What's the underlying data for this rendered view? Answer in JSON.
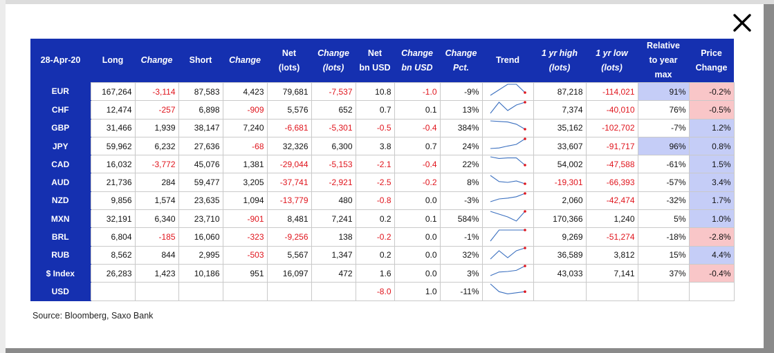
{
  "colors": {
    "header_bg": "#1530b0",
    "negative": "#e0141c",
    "highlight_blue": "#c5cdf7",
    "highlight_pink": "#f9c6c8"
  },
  "close_icon": "close-icon",
  "date_label": "28-Apr-20",
  "headers": [
    [
      "Long"
    ],
    [
      "Change"
    ],
    [
      "Short"
    ],
    [
      "Change"
    ],
    [
      "Net",
      "(lots)"
    ],
    [
      "Change",
      "(lots)"
    ],
    [
      "Net",
      "bn USD"
    ],
    [
      "Change",
      "bn USD"
    ],
    [
      "Change",
      "Pct."
    ],
    [
      "Trend"
    ],
    [
      "1 yr high",
      "(lots)"
    ],
    [
      "1 yr low",
      "(lots)"
    ],
    [
      "Relative",
      "to year",
      "max"
    ],
    [
      "Price",
      "Change"
    ]
  ],
  "rows": [
    {
      "name": "EUR",
      "cells": [
        "167,264",
        "-3,114",
        "87,583",
        "4,423",
        "79,681",
        "-7,537",
        "10.8",
        "-1.0",
        "-9%",
        "",
        "87,218",
        "-114,021",
        "91%",
        "-0.2%"
      ],
      "trend": [
        5,
        3,
        1,
        1,
        4
      ],
      "rel": "blue",
      "price": "pink"
    },
    {
      "name": "CHF",
      "cells": [
        "12,474",
        "-257",
        "6,898",
        "-909",
        "5,576",
        "652",
        "0.7",
        "0.1",
        "13%",
        "",
        "7,374",
        "-40,010",
        "76%",
        "-0.5%"
      ],
      "trend": [
        5,
        1,
        4,
        2,
        1
      ],
      "rel": "",
      "price": "pink"
    },
    {
      "name": "GBP",
      "cells": [
        "31,466",
        "1,939",
        "38,147",
        "7,240",
        "-6,681",
        "-5,301",
        "-0.5",
        "-0.4",
        "384%",
        "",
        "35,162",
        "-102,702",
        "-7%",
        "1.2%"
      ],
      "trend": [
        1,
        1.2,
        1.4,
        2.2,
        4
      ],
      "rel": "",
      "price": "blue"
    },
    {
      "name": "JPY",
      "cells": [
        "59,962",
        "6,232",
        "27,636",
        "-68",
        "32,326",
        "6,300",
        "3.8",
        "0.7",
        "24%",
        "",
        "33,607",
        "-91,717",
        "96%",
        "0.8%"
      ],
      "trend": [
        4.5,
        4.3,
        3.6,
        3,
        1
      ],
      "rel": "blue",
      "price": "blue"
    },
    {
      "name": "CAD",
      "cells": [
        "16,032",
        "-3,772",
        "45,076",
        "1,381",
        "-29,044",
        "-5,153",
        "-2.1",
        "-0.4",
        "22%",
        "",
        "54,002",
        "-47,588",
        "-61%",
        "1.5%"
      ],
      "trend": [
        1,
        1.6,
        1.4,
        1.4,
        4
      ],
      "rel": "",
      "price": "blue"
    },
    {
      "name": "AUD",
      "cells": [
        "21,736",
        "284",
        "59,477",
        "3,205",
        "-37,741",
        "-2,921",
        "-2.5",
        "-0.2",
        "8%",
        "",
        "-19,301",
        "-66,393",
        "-57%",
        "3.4%"
      ],
      "trend": [
        1,
        3.2,
        3.5,
        3,
        4
      ],
      "rel": "",
      "price": "blue"
    },
    {
      "name": "NZD",
      "cells": [
        "9,856",
        "1,574",
        "23,635",
        "1,094",
        "-13,779",
        "480",
        "-0.8",
        "0.0",
        "-3%",
        "",
        "2,060",
        "-42,474",
        "-32%",
        "1.7%"
      ],
      "trend": [
        4,
        3,
        2.7,
        2.2,
        1
      ],
      "rel": "",
      "price": "blue"
    },
    {
      "name": "MXN",
      "cells": [
        "32,191",
        "6,340",
        "23,710",
        "-901",
        "8,481",
        "7,241",
        "0.2",
        "0.1",
        "584%",
        "",
        "170,366",
        "1,240",
        "5%",
        "1.0%"
      ],
      "trend": [
        1,
        2,
        3,
        4.5,
        1
      ],
      "rel": "",
      "price": "blue"
    },
    {
      "name": "BRL",
      "cells": [
        "6,804",
        "-185",
        "16,060",
        "-323",
        "-9,256",
        "138",
        "-0.2",
        "0.0",
        "-1%",
        "",
        "9,269",
        "-51,274",
        "-18%",
        "-2.8%"
      ],
      "trend": [
        5,
        1,
        1,
        1,
        1
      ],
      "rel": "",
      "price": "pink"
    },
    {
      "name": "RUB",
      "cells": [
        "8,562",
        "844",
        "2,995",
        "-503",
        "5,567",
        "1,347",
        "0.2",
        "0.0",
        "32%",
        "",
        "36,589",
        "3,812",
        "15%",
        "4.4%"
      ],
      "trend": [
        5,
        2,
        4.5,
        2,
        1
      ],
      "rel": "",
      "price": "blue"
    },
    {
      "name": "$ Index",
      "cells": [
        "26,283",
        "1,423",
        "10,186",
        "951",
        "16,097",
        "472",
        "1.6",
        "0.0",
        "3%",
        "",
        "43,033",
        "7,141",
        "37%",
        "-0.4%"
      ],
      "trend": [
        4.5,
        3.2,
        3,
        2.6,
        1
      ],
      "rel": "",
      "price": "pink"
    },
    {
      "name": "USD",
      "cells": [
        "",
        "",
        "",
        "",
        "",
        "",
        "-8.0",
        "1.0",
        "-11%",
        "",
        "",
        "",
        "",
        ""
      ],
      "trend": [
        1,
        3.8,
        4.6,
        4.2,
        3.8
      ],
      "rel": "",
      "price": ""
    }
  ],
  "source": "Source: Bloomberg, Saxo Bank"
}
